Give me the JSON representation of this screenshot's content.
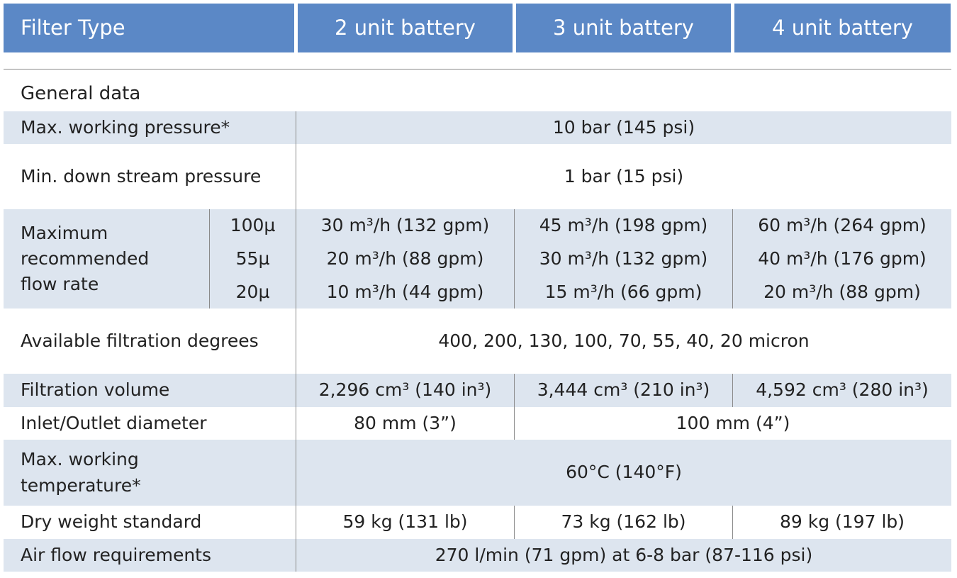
{
  "header": {
    "cells": [
      "Filter Type",
      "2 unit battery",
      "3 unit battery",
      "4 unit battery"
    ]
  },
  "section_title": "General data",
  "rows": [
    {
      "label": "Max. working pressure*",
      "value": "10 bar (145 psi)"
    },
    {
      "label": "Min. down stream pressure",
      "value": "1 bar (15 psi)"
    },
    {
      "label": "Maximum recommended flow rate",
      "subrows": [
        {
          "label": "100µ",
          "values": [
            "30 m³/h (132 gpm)",
            "45 m³/h (198 gpm)",
            "60 m³/h (264 gpm)"
          ]
        },
        {
          "label": "55µ",
          "values": [
            "20 m³/h (88 gpm)",
            "30 m³/h (132 gpm)",
            "40 m³/h (176 gpm)"
          ]
        },
        {
          "label": "20µ",
          "values": [
            "10 m³/h (44 gpm)",
            "15 m³/h (66 gpm)",
            "20 m³/h (88 gpm)"
          ]
        }
      ]
    },
    {
      "label": "Available filtration degrees",
      "value": "400, 200, 130, 100, 70, 55, 40, 20 micron"
    },
    {
      "label": "Filtration volume",
      "values": [
        "2,296 cm³ (140 in³)",
        "3,444 cm³ (210 in³)",
        "4,592 cm³ (280 in³)"
      ]
    },
    {
      "label": "Inlet/Outlet diameter",
      "values": [
        "80 mm (3”)",
        "100 mm (4”)"
      ]
    },
    {
      "label": "Max. working temperature*",
      "value": "60°C (140°F)"
    },
    {
      "label": "Dry weight standard",
      "values": [
        "59 kg (131 lb)",
        "73 kg (162 lb)",
        "89 kg (197 lb)"
      ]
    },
    {
      "label": "Air flow requirements",
      "value": "270 l/min (71 gpm) at 6-8 bar (87-116 psi)"
    }
  ]
}
